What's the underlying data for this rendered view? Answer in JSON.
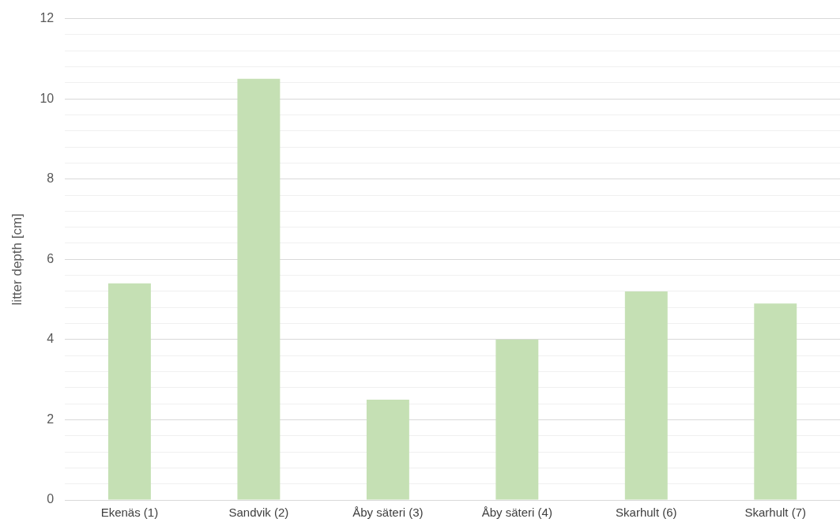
{
  "chart_data": {
    "type": "bar",
    "ylabel": "litter depth [cm]",
    "categories": [
      "Ekenäs (1)",
      "Sandvik (2)",
      "Åby säteri (3)",
      "Åby säteri (4)",
      "Skarhult (6)",
      "Skarhult (7)"
    ],
    "values": [
      5.4,
      10.5,
      2.5,
      4.0,
      5.2,
      4.9
    ],
    "color": "#c5e0b4",
    "ylim": [
      0,
      12
    ],
    "yticks": [
      0,
      {
        "value": 0.4,
        "label": null
      },
      {
        "value": 0.8,
        "label": null
      },
      {
        "value": 1.2,
        "label": null
      },
      {
        "value": 1.6,
        "label": null
      },
      2,
      {
        "value": 2.4,
        "label": null
      },
      {
        "value": 2.8,
        "label": null
      },
      {
        "value": 3.2,
        "label": null
      },
      {
        "value": 3.6,
        "label": null
      },
      4,
      {
        "value": 4.4,
        "label": null
      },
      {
        "value": 4.8,
        "label": null
      },
      {
        "value": 5.2,
        "label": null
      },
      {
        "value": 5.6,
        "label": null
      },
      6,
      {
        "value": 6.4,
        "label": null
      },
      {
        "value": 6.8,
        "label": null
      },
      {
        "value": 7.2,
        "label": null
      },
      {
        "value": 7.6,
        "label": null
      },
      8,
      {
        "value": 8.4,
        "label": null
      },
      {
        "value": 8.8,
        "label": null
      },
      {
        "value": 9.2,
        "label": null
      },
      {
        "value": 9.6,
        "label": null
      },
      10,
      {
        "value": 10.4,
        "label": null
      },
      {
        "value": 10.8,
        "label": null
      },
      {
        "value": 11.2,
        "label": null
      },
      {
        "value": 11.6,
        "label": null
      },
      12
    ],
    "grid": "y"
  }
}
